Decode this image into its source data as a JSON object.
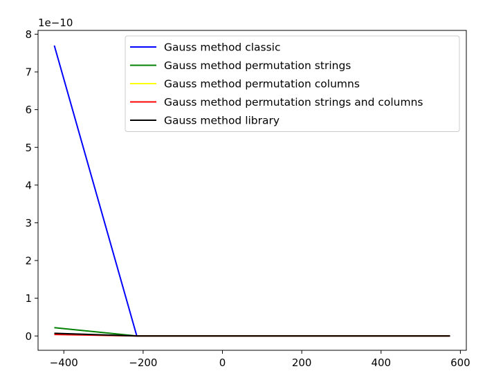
{
  "chart_data": {
    "type": "line",
    "offset_text": "1e−10",
    "xlim": [
      -465,
      615
    ],
    "ylim": [
      -0.38,
      8.1
    ],
    "x_ticks": [
      -400,
      -200,
      0,
      200,
      400,
      600
    ],
    "y_ticks": [
      0,
      1,
      2,
      3,
      4,
      5,
      6,
      7,
      8
    ],
    "legend_position": "top-right",
    "grid": false,
    "series": [
      {
        "name": "Gauss method classic",
        "color": "#0000ff",
        "x": [
          -424,
          -216,
          574
        ],
        "y": [
          7.7,
          0.0,
          0.0
        ]
      },
      {
        "name": "Gauss method permutation strings",
        "color": "#008000",
        "x": [
          -424,
          -216,
          574
        ],
        "y": [
          0.22,
          0.0,
          0.0
        ]
      },
      {
        "name": "Gauss method permutation columns",
        "color": "#ffff00",
        "x": [
          -424,
          -216,
          574
        ],
        "y": [
          0.05,
          0.0,
          0.0
        ]
      },
      {
        "name": "Gauss method permutation strings and columns",
        "color": "#ff0000",
        "x": [
          -424,
          -216,
          574
        ],
        "y": [
          0.04,
          0.0,
          0.0
        ]
      },
      {
        "name": "Gauss method library",
        "color": "#000000",
        "x": [
          -424,
          -216,
          574
        ],
        "y": [
          0.07,
          0.0,
          0.0
        ]
      }
    ]
  }
}
